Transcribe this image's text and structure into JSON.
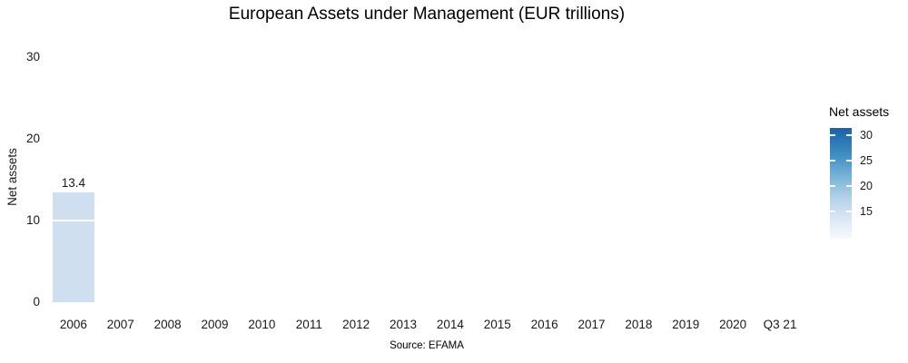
{
  "chart": {
    "title": "European Assets under Management (EUR trillions)",
    "caption": "Source: EFAMA",
    "y_axis_label": "Net assets",
    "y_ticks": [
      "30",
      "20",
      "10",
      "0"
    ],
    "legend_title": "Net assets",
    "legend_ticks": [
      "30",
      "25",
      "20",
      "15"
    ]
  },
  "chart_data": {
    "type": "bar",
    "title": "European Assets under Management (EUR trillions)",
    "caption": "Source: EFAMA",
    "categories": [
      "2006",
      "2007",
      "2008",
      "2009",
      "2010",
      "2011",
      "2012",
      "2013",
      "2014",
      "2015",
      "2016",
      "2017",
      "2018",
      "2019",
      "2020",
      "Q3 21"
    ],
    "values": [
      13.4,
      null,
      null,
      null,
      null,
      null,
      null,
      null,
      null,
      null,
      null,
      null,
      null,
      null,
      null,
      null
    ],
    "bar_labels": [
      "13.4",
      null,
      null,
      null,
      null,
      null,
      null,
      null,
      null,
      null,
      null,
      null,
      null,
      null,
      null,
      null
    ],
    "xlabel": "",
    "ylabel": "Net assets",
    "ylim": [
      0,
      30
    ],
    "yticks": [
      0,
      10,
      20,
      30
    ],
    "grid": "white major gridlines on white panel (visible only across bars)",
    "legend": {
      "title": "Net assets",
      "position": "right",
      "type": "continuous-gradient",
      "ticks": [
        30,
        25,
        20,
        15
      ],
      "high_color": "#1a61a6",
      "low_color": "#f6f9fd"
    },
    "colors": {
      "bar_fill": "#cfdff0",
      "text": "#1a1a1a",
      "background": "#ffffff"
    }
  }
}
